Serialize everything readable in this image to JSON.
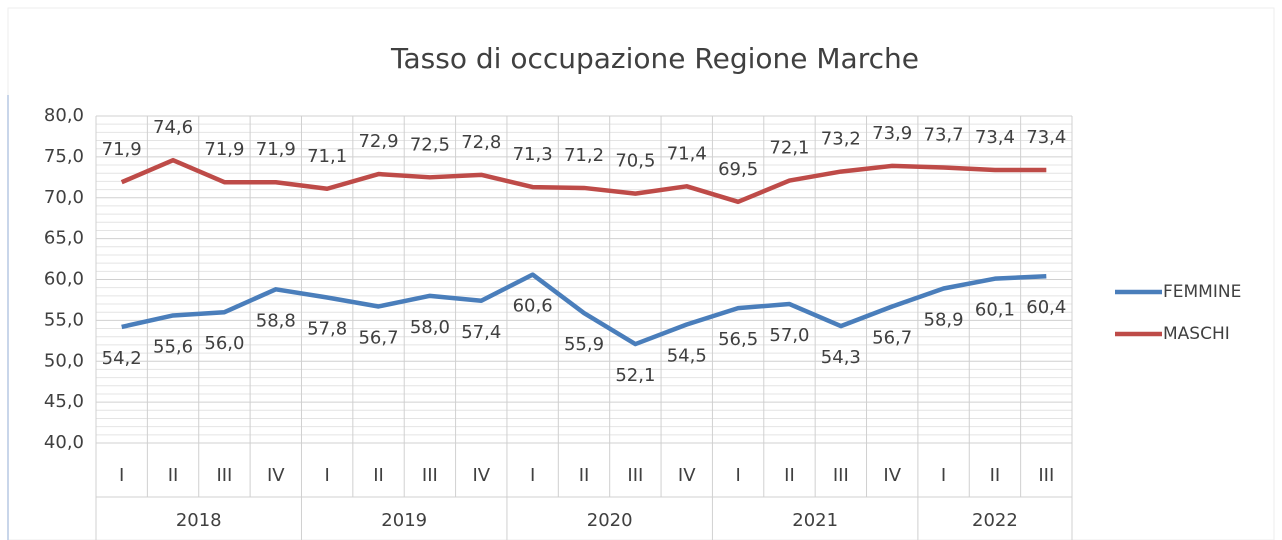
{
  "chart_data": {
    "type": "line",
    "title": "Tasso di occupazione Regione Marche",
    "groups": [
      {
        "label": "2018",
        "categories": [
          "I",
          "II",
          "III",
          "IV"
        ]
      },
      {
        "label": "2019",
        "categories": [
          "I",
          "II",
          "III",
          "IV"
        ]
      },
      {
        "label": "2020",
        "categories": [
          "I",
          "II",
          "III",
          "IV"
        ]
      },
      {
        "label": "2021",
        "categories": [
          "I",
          "II",
          "III",
          "IV"
        ]
      },
      {
        "label": "2022",
        "categories": [
          "I",
          "II",
          "III"
        ]
      }
    ],
    "series": [
      {
        "name": "FEMMINE",
        "color": "#4a7ebb",
        "label_position": "below",
        "values": [
          54.2,
          55.6,
          56.0,
          58.8,
          57.8,
          56.7,
          58.0,
          57.4,
          60.6,
          55.9,
          52.1,
          54.5,
          56.5,
          57.0,
          54.3,
          56.7,
          58.9,
          60.1,
          60.4
        ],
        "value_labels": [
          "54,2",
          "55,6",
          "56,0",
          "58,8",
          "57,8",
          "56,7",
          "58,0",
          "57,4",
          "60,6",
          "55,9",
          "52,1",
          "54,5",
          "56,5",
          "57,0",
          "54,3",
          "56,7",
          "58,9",
          "60,1",
          "60,4"
        ]
      },
      {
        "name": "MASCHI",
        "color": "#be4b48",
        "label_position": "above",
        "values": [
          71.9,
          74.6,
          71.9,
          71.9,
          71.1,
          72.9,
          72.5,
          72.8,
          71.3,
          71.2,
          70.5,
          71.4,
          69.5,
          72.1,
          73.2,
          73.9,
          73.7,
          73.4,
          73.4
        ],
        "value_labels": [
          "71,9",
          "74,6",
          "71,9",
          "71,9",
          "71,1",
          "72,9",
          "72,5",
          "72,8",
          "71,3",
          "71,2",
          "70,5",
          "71,4",
          "69,5",
          "72,1",
          "73,2",
          "73,9",
          "73,7",
          "73,4",
          "73,4"
        ]
      }
    ],
    "ylim": [
      40,
      80
    ],
    "yticks": [
      {
        "value": 40,
        "label": "40,0"
      },
      {
        "value": 45,
        "label": "45,0"
      },
      {
        "value": 50,
        "label": "50,0"
      },
      {
        "value": 55,
        "label": "55,0"
      },
      {
        "value": 60,
        "label": "60,0"
      },
      {
        "value": 65,
        "label": "65,0"
      },
      {
        "value": 70,
        "label": "70,0"
      },
      {
        "value": 75,
        "label": "75,0"
      },
      {
        "value": 80,
        "label": "80,0"
      }
    ],
    "grid": true,
    "legend": "right"
  }
}
